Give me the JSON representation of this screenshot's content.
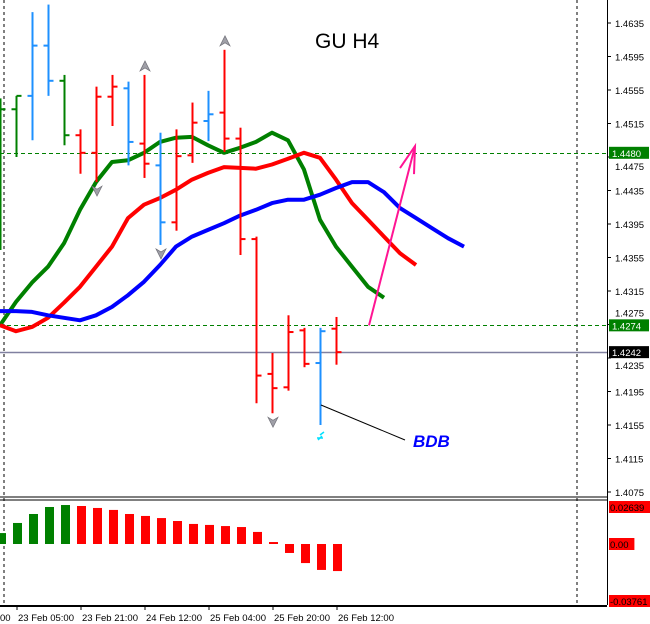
{
  "chart_data": {
    "type": "ohlc-bar",
    "title": "GU H4",
    "annotation": "BDB",
    "price_axis": {
      "ticks": [
        "1.4635",
        "1.4595",
        "1.4555",
        "1.4515",
        "1.4475",
        "1.4435",
        "1.4395",
        "1.4355",
        "1.4315",
        "1.4275",
        "1.4235",
        "1.4195",
        "1.4155",
        "1.4115",
        "1.4075"
      ],
      "ylim": [
        1.4062,
        1.4663
      ]
    },
    "price_badges": [
      {
        "value": 1.448,
        "label": "1.4480",
        "bg": "#008000",
        "fg": "#ffffff",
        "line": "dashed-green"
      },
      {
        "value": 1.4274,
        "label": "1.4274",
        "bg": "#008000",
        "fg": "#ffffff",
        "line": "dashed-green"
      },
      {
        "value": 1.4242,
        "label": "1.4242",
        "bg": "#000000",
        "fg": "#ffffff",
        "line": "solid-gray"
      }
    ],
    "time_axis": {
      "labels": [
        "00",
        "23 Feb 05:00",
        "23 Feb 21:00",
        "24 Feb 12:00",
        "25 Feb 04:00",
        "25 Feb 20:00",
        "26 Feb 12:00"
      ]
    },
    "bars": [
      {
        "o": 1.4507,
        "h": 1.4545,
        "l": 1.4364,
        "c": 1.4532,
        "color": "#008000"
      },
      {
        "o": 1.4532,
        "h": 1.4548,
        "l": 1.4475,
        "c": 1.4548,
        "color": "#008000"
      },
      {
        "o": 1.4548,
        "h": 1.4648,
        "l": 1.4495,
        "c": 1.4608,
        "color": "#1e90ff"
      },
      {
        "o": 1.4608,
        "h": 1.4657,
        "l": 1.4548,
        "c": 1.4566,
        "color": "#1e90ff"
      },
      {
        "o": 1.4566,
        "h": 1.4573,
        "l": 1.4489,
        "c": 1.4501,
        "color": "#008000"
      },
      {
        "o": 1.4501,
        "h": 1.4508,
        "l": 1.4455,
        "c": 1.448,
        "color": "#ff0000"
      },
      {
        "o": 1.448,
        "h": 1.4559,
        "l": 1.4445,
        "c": 1.4547,
        "color": "#ff0000"
      },
      {
        "o": 1.4547,
        "h": 1.4573,
        "l": 1.4512,
        "c": 1.4559,
        "color": "#ff0000"
      },
      {
        "o": 1.4557,
        "h": 1.4565,
        "l": 1.4465,
        "c": 1.4493,
        "color": "#1e90ff"
      },
      {
        "o": 1.4491,
        "h": 1.4573,
        "l": 1.445,
        "c": 1.4467,
        "color": "#ff0000"
      },
      {
        "o": 1.4465,
        "h": 1.4504,
        "l": 1.437,
        "c": 1.4397,
        "color": "#1e90ff"
      },
      {
        "o": 1.4397,
        "h": 1.4508,
        "l": 1.4387,
        "c": 1.4476,
        "color": "#ff0000"
      },
      {
        "o": 1.4477,
        "h": 1.454,
        "l": 1.4468,
        "c": 1.4516,
        "color": "#ff0000"
      },
      {
        "o": 1.4518,
        "h": 1.4554,
        "l": 1.4494,
        "c": 1.4526,
        "color": "#1e90ff"
      },
      {
        "o": 1.4528,
        "h": 1.4603,
        "l": 1.4481,
        "c": 1.4497,
        "color": "#ff0000"
      },
      {
        "o": 1.4497,
        "h": 1.451,
        "l": 1.4358,
        "c": 1.4377,
        "color": "#ff0000"
      },
      {
        "o": 1.4377,
        "h": 1.438,
        "l": 1.4181,
        "c": 1.4214,
        "color": "#ff0000"
      },
      {
        "o": 1.4216,
        "h": 1.4241,
        "l": 1.4169,
        "c": 1.4199,
        "color": "#ff0000"
      },
      {
        "o": 1.42,
        "h": 1.4286,
        "l": 1.4196,
        "c": 1.4266,
        "color": "#ff0000"
      },
      {
        "o": 1.4268,
        "h": 1.4271,
        "l": 1.4224,
        "c": 1.4228,
        "color": "#ff0000"
      },
      {
        "o": 1.4229,
        "h": 1.4271,
        "l": 1.4155,
        "c": 1.4267,
        "color": "#1e90ff"
      },
      {
        "o": 1.427,
        "h": 1.4284,
        "l": 1.4227,
        "c": 1.4242,
        "color": "#ff0000"
      }
    ],
    "fractals": [
      {
        "bar": 9,
        "dir": "up"
      },
      {
        "bar": 14,
        "dir": "up"
      },
      {
        "bar": 6,
        "dir": "down"
      },
      {
        "bar": 10,
        "dir": "down"
      },
      {
        "bar": 17,
        "dir": "down"
      }
    ],
    "series": [
      {
        "color": "#008000",
        "values": [
          1.4274,
          1.4302,
          1.4325,
          1.4344,
          1.4372,
          1.4412,
          1.4445,
          1.4469,
          1.4471,
          1.448,
          1.4493,
          1.4498,
          1.4499,
          1.4489,
          1.448,
          1.4486,
          1.4493,
          1.4504,
          1.4495,
          1.446,
          1.44,
          1.4368,
          1.4344,
          1.432,
          1.4307
        ]
      },
      {
        "color": "#ff0000",
        "values": [
          1.4274,
          1.4267,
          1.4272,
          1.4283,
          1.4301,
          1.432,
          1.4344,
          1.4368,
          1.4402,
          1.4418,
          1.4426,
          1.4436,
          1.4448,
          1.4456,
          1.4463,
          1.4462,
          1.4461,
          1.4466,
          1.4473,
          1.448,
          1.4474,
          1.4448,
          1.442,
          1.44,
          1.438,
          1.436,
          1.4346
        ]
      },
      {
        "color": "#0000ff",
        "values": [
          1.4291,
          1.4291,
          1.429,
          1.4286,
          1.4283,
          1.428,
          1.4286,
          1.4296,
          1.431,
          1.4326,
          1.4346,
          1.4368,
          1.438,
          1.4388,
          1.4396,
          1.4405,
          1.4412,
          1.442,
          1.4424,
          1.4424,
          1.443,
          1.4438,
          1.4445,
          1.4445,
          1.4433,
          1.4414,
          1.4402,
          1.439,
          1.4378,
          1.4368
        ]
      }
    ],
    "trend_arrow": {
      "color": "#ff1493",
      "from": {
        "bar": 23,
        "price": 1.4274
      },
      "to": {
        "bar": 26,
        "price": 1.4488
      }
    },
    "oscillator": {
      "type": "histogram",
      "ylim": [
        -0.03761,
        0.02639
      ],
      "labels": [
        "0.02639",
        "0.00",
        "-0.03761"
      ],
      "label_bg": "#ff0000",
      "values": [
        0.0078,
        0.015,
        0.0214,
        0.0264,
        0.0278,
        0.0271,
        0.0257,
        0.0243,
        0.0214,
        0.02,
        0.0185,
        0.0164,
        0.0143,
        0.0136,
        0.0128,
        0.0121,
        0.0086,
        0.0014,
        -0.0064,
        -0.0136,
        -0.0185,
        -0.0193
      ],
      "colors": [
        "#008000",
        "#008000",
        "#008000",
        "#008000",
        "#008000",
        "#ff0000",
        "#ff0000",
        "#ff0000",
        "#ff0000",
        "#ff0000",
        "#ff0000",
        "#ff0000",
        "#ff0000",
        "#ff0000",
        "#ff0000",
        "#ff0000",
        "#ff0000",
        "#ff0000",
        "#ff0000",
        "#ff0000",
        "#ff0000",
        "#ff0000"
      ]
    }
  }
}
